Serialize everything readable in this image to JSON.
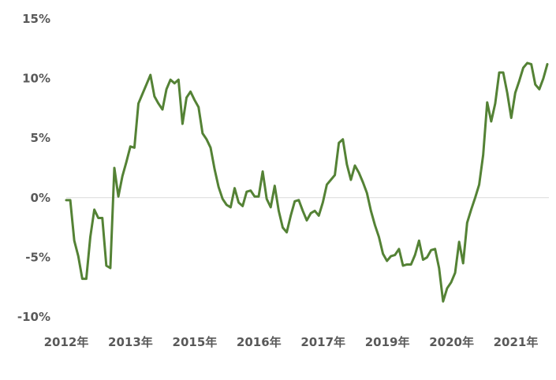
{
  "chart_data": {
    "type": "line",
    "title": "",
    "xlabel": "",
    "ylabel": "",
    "ylim": [
      -10,
      15
    ],
    "y_ticks": [
      -10,
      -5,
      0,
      5,
      10,
      15
    ],
    "y_tick_labels": [
      "-10%",
      "-5%",
      "0%",
      "5%",
      "10%",
      "15%"
    ],
    "x_tick_labels": [
      "2012年",
      "2013年",
      "2015年",
      "2016年",
      "2017年",
      "2019年",
      "2020年",
      "2021年"
    ],
    "gridlines": "zero-line only",
    "legend": "none",
    "line_color": "#548235",
    "zero_line_color": "#d9d9d9",
    "series": [
      {
        "values": [
          -0.2,
          -0.2,
          -3.6,
          -4.9,
          -6.8,
          -6.8,
          -3.3,
          -1.0,
          -1.7,
          -1.7,
          -5.7,
          -5.9,
          2.5,
          0.1,
          1.8,
          3.0,
          4.3,
          4.2,
          7.9,
          8.7,
          9.5,
          10.3,
          8.5,
          7.9,
          7.4,
          9.1,
          9.9,
          9.6,
          9.9,
          6.2,
          8.4,
          8.9,
          8.2,
          7.6,
          5.4,
          4.9,
          4.2,
          2.4,
          0.9,
          -0.1,
          -0.6,
          -0.8,
          0.8,
          -0.4,
          -0.7,
          0.5,
          0.6,
          0.1,
          0.1,
          2.2,
          -0.1,
          -0.8,
          1.0,
          -1.1,
          -2.5,
          -2.9,
          -1.5,
          -0.3,
          -0.2,
          -1.1,
          -1.9,
          -1.3,
          -1.1,
          -1.5,
          -0.4,
          1.1,
          1.5,
          1.9,
          4.6,
          4.9,
          2.8,
          1.5,
          2.7,
          2.1,
          1.3,
          0.4,
          -1.1,
          -2.3,
          -3.3,
          -4.7,
          -5.3,
          -4.9,
          -4.8,
          -4.3,
          -5.7,
          -5.6,
          -5.6,
          -4.8,
          -3.6,
          -5.2,
          -5.0,
          -4.4,
          -4.3,
          -5.9,
          -8.7,
          -7.6,
          -7.1,
          -6.3,
          -3.7,
          -5.5,
          -2.1,
          -1.0,
          0.0,
          1.1,
          3.6,
          8.0,
          6.4,
          7.9,
          10.5,
          10.5,
          8.8,
          6.7,
          8.8,
          9.8,
          10.9,
          11.3,
          11.2,
          9.5,
          9.1,
          10.0,
          11.2
        ]
      }
    ]
  }
}
